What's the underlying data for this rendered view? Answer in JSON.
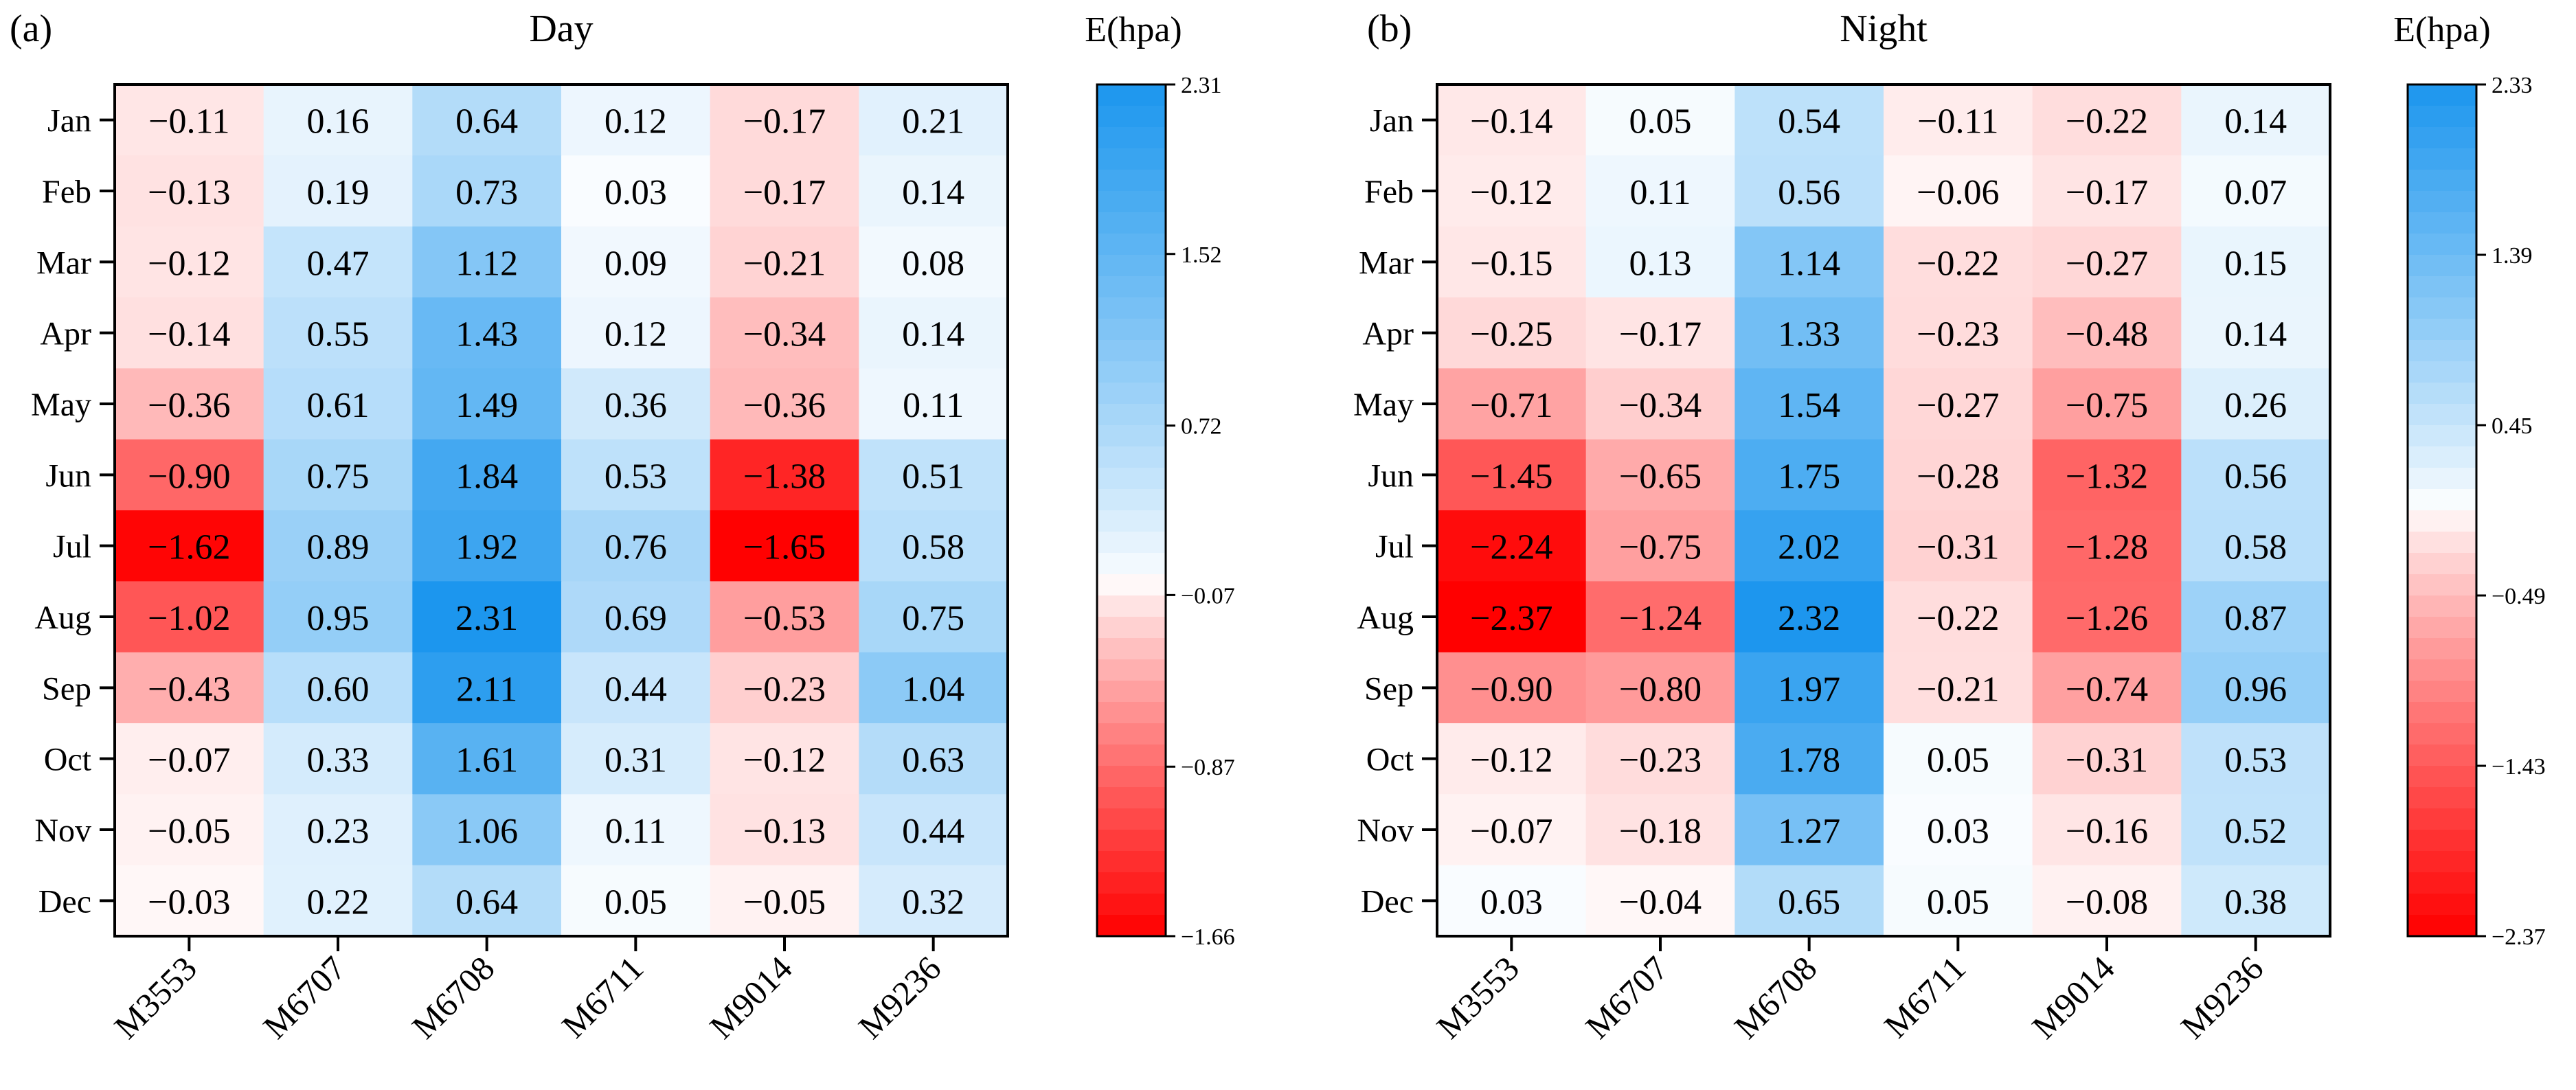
{
  "chart_data": [
    {
      "type": "heatmap",
      "panel_label": "(a)",
      "title": "Day",
      "xlabel": "",
      "ylabel": "",
      "rows": [
        "Jan",
        "Feb",
        "Mar",
        "Apr",
        "May",
        "Jun",
        "Jul",
        "Aug",
        "Sep",
        "Oct",
        "Nov",
        "Dec"
      ],
      "columns": [
        "M3553",
        "M6707",
        "M6708",
        "M6711",
        "M9014",
        "M9236"
      ],
      "values": [
        [
          "−0.11",
          "0.16",
          "0.64",
          "0.12",
          "−0.17",
          "0.21"
        ],
        [
          "−0.13",
          "0.19",
          "0.73",
          "0.03",
          "−0.17",
          "0.14"
        ],
        [
          "−0.12",
          "0.47",
          "1.12",
          "0.09",
          "−0.21",
          "0.08"
        ],
        [
          "−0.14",
          "0.55",
          "1.43",
          "0.12",
          "−0.34",
          "0.14"
        ],
        [
          "−0.36",
          "0.61",
          "1.49",
          "0.36",
          "−0.36",
          "0.11"
        ],
        [
          "−0.90",
          "0.75",
          "1.84",
          "0.53",
          "−1.38",
          "0.51"
        ],
        [
          "−1.62",
          "0.89",
          "1.92",
          "0.76",
          "−1.65",
          "0.58"
        ],
        [
          "−1.02",
          "0.95",
          "2.31",
          "0.69",
          "−0.53",
          "0.75"
        ],
        [
          "−0.43",
          "0.60",
          "2.11",
          "0.44",
          "−0.23",
          "1.04"
        ],
        [
          "−0.07",
          "0.33",
          "1.61",
          "0.31",
          "−0.12",
          "0.63"
        ],
        [
          "−0.05",
          "0.23",
          "1.06",
          "0.11",
          "−0.13",
          "0.44"
        ],
        [
          "−0.03",
          "0.22",
          "0.64",
          "0.05",
          "−0.05",
          "0.32"
        ]
      ],
      "colorbar": {
        "title": "E(hpa)",
        "min": -1.66,
        "max": 2.31,
        "tick_labels": [
          "2.31",
          "1.52",
          "0.72",
          "−0.07",
          "−0.87",
          "−1.66"
        ],
        "tick_values": [
          2.31,
          1.52,
          0.72,
          -0.07,
          -0.87,
          -1.66
        ],
        "negative_color": "#ff0000",
        "positive_color": "#1c96ee",
        "neutral_color": "#ffffff"
      }
    },
    {
      "type": "heatmap",
      "panel_label": "(b)",
      "title": "Night",
      "xlabel": "",
      "ylabel": "",
      "rows": [
        "Jan",
        "Feb",
        "Mar",
        "Apr",
        "May",
        "Jun",
        "Jul",
        "Aug",
        "Sep",
        "Oct",
        "Nov",
        "Dec"
      ],
      "columns": [
        "M3553",
        "M6707",
        "M6708",
        "M6711",
        "M9014",
        "M9236"
      ],
      "values": [
        [
          "−0.14",
          "0.05",
          "0.54",
          "−0.11",
          "−0.22",
          "0.14"
        ],
        [
          "−0.12",
          "0.11",
          "0.56",
          "−0.06",
          "−0.17",
          "0.07"
        ],
        [
          "−0.15",
          "0.13",
          "1.14",
          "−0.22",
          "−0.27",
          "0.15"
        ],
        [
          "−0.25",
          "−0.17",
          "1.33",
          "−0.23",
          "−0.48",
          "0.14"
        ],
        [
          "−0.71",
          "−0.34",
          "1.54",
          "−0.27",
          "−0.75",
          "0.26"
        ],
        [
          "−1.45",
          "−0.65",
          "1.75",
          "−0.28",
          "−1.32",
          "0.56"
        ],
        [
          "−2.24",
          "−0.75",
          "2.02",
          "−0.31",
          "−1.28",
          "0.58"
        ],
        [
          "−2.37",
          "−1.24",
          "2.32",
          "−0.22",
          "−1.26",
          "0.87"
        ],
        [
          "−0.90",
          "−0.80",
          "1.97",
          "−0.21",
          "−0.74",
          "0.96"
        ],
        [
          "−0.12",
          "−0.23",
          "1.78",
          "0.05",
          "−0.31",
          "0.53"
        ],
        [
          "−0.07",
          "−0.18",
          "1.27",
          "0.03",
          "−0.16",
          "0.52"
        ],
        [
          "0.03",
          "−0.04",
          "0.65",
          "0.05",
          "−0.08",
          "0.38"
        ]
      ],
      "colorbar": {
        "title": "E(hpa)",
        "min": -2.37,
        "max": 2.33,
        "tick_labels": [
          "2.33",
          "1.39",
          "0.45",
          "−0.49",
          "−1.43",
          "−2.37"
        ],
        "tick_values": [
          2.33,
          1.39,
          0.45,
          -0.49,
          -1.43,
          -2.37
        ],
        "negative_color": "#ff0000",
        "positive_color": "#1c96ee",
        "neutral_color": "#ffffff"
      }
    }
  ]
}
